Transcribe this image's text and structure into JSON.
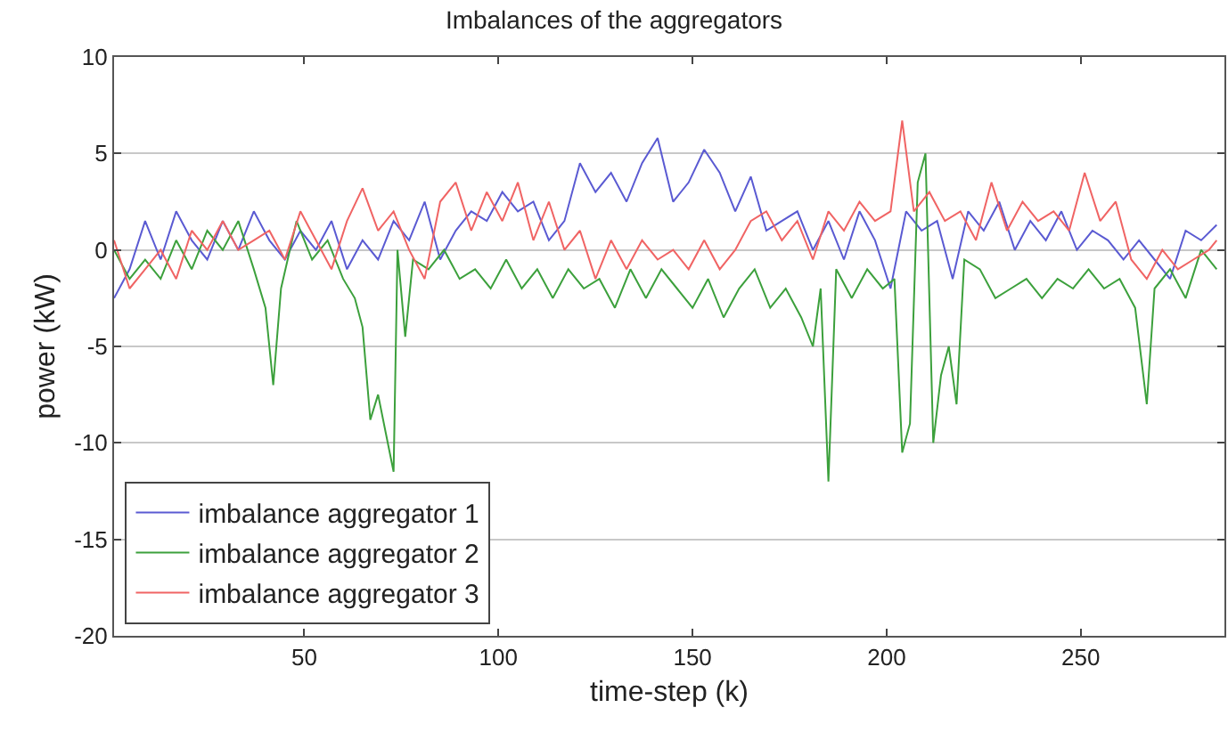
{
  "chart_data": {
    "type": "line",
    "title": "Imbalances of the aggregators",
    "xlabel": "time-step (k)",
    "ylabel": "power (kW)",
    "xlim": [
      1,
      287
    ],
    "xticks": [
      50,
      100,
      150,
      200,
      250
    ],
    "ylim": [
      -20,
      10
    ],
    "yticks": [
      -20,
      -15,
      -10,
      -5,
      0,
      5,
      10
    ],
    "grid": "y",
    "legend": "bottom left",
    "marker": "none",
    "line_style": "solid",
    "series": [
      {
        "name": "imbalance aggregator 1",
        "color": "#5a5ad2",
        "x": [
          1,
          5,
          9,
          13,
          17,
          21,
          25,
          29,
          33,
          37,
          41,
          45,
          49,
          53,
          57,
          61,
          65,
          69,
          73,
          77,
          81,
          85,
          89,
          93,
          97,
          101,
          105,
          109,
          113,
          117,
          121,
          125,
          129,
          133,
          137,
          141,
          145,
          149,
          153,
          157,
          161,
          165,
          169,
          173,
          177,
          181,
          185,
          189,
          193,
          197,
          201,
          205,
          209,
          213,
          217,
          221,
          225,
          229,
          233,
          237,
          241,
          245,
          249,
          253,
          257,
          261,
          265,
          269,
          273,
          277,
          281,
          285
        ],
        "values": [
          -2.5,
          -1,
          1.5,
          -0.5,
          2,
          0.5,
          -0.5,
          1.5,
          0,
          2,
          0.5,
          -0.5,
          1,
          0,
          1.5,
          -1,
          0.5,
          -0.5,
          1.5,
          0.5,
          2.5,
          -0.5,
          1,
          2,
          1.5,
          3,
          2,
          2.5,
          0.5,
          1.5,
          4.5,
          3,
          4,
          2.5,
          4.5,
          5.8,
          2.5,
          3.5,
          5.2,
          4,
          2,
          3.8,
          1,
          1.5,
          2,
          0,
          1.5,
          -0.5,
          2,
          0.5,
          -2,
          2,
          1,
          1.5,
          -1.5,
          2,
          1,
          2.5,
          0,
          1.5,
          0.5,
          2,
          0,
          1,
          0.5,
          -0.5,
          0.5,
          -0.5,
          -1.5,
          1,
          0.5,
          1.3
        ]
      },
      {
        "name": "imbalance aggregator 2",
        "color": "#3ca03c",
        "x": [
          1,
          5,
          9,
          13,
          17,
          21,
          25,
          29,
          33,
          37,
          40,
          42,
          44,
          48,
          52,
          56,
          60,
          63,
          65,
          67,
          69,
          71,
          73,
          74,
          76,
          78,
          82,
          86,
          90,
          94,
          98,
          102,
          106,
          110,
          114,
          118,
          122,
          126,
          130,
          134,
          138,
          142,
          146,
          150,
          154,
          158,
          162,
          166,
          170,
          174,
          178,
          181,
          183,
          185,
          187,
          191,
          195,
          199,
          202,
          204,
          206,
          208,
          210,
          212,
          214,
          216,
          218,
          220,
          224,
          228,
          232,
          236,
          240,
          244,
          248,
          252,
          256,
          260,
          264,
          267,
          269,
          273,
          277,
          281,
          285
        ],
        "values": [
          0,
          -1.5,
          -0.5,
          -1.5,
          0.5,
          -1,
          1,
          0,
          1.5,
          -1,
          -3,
          -7,
          -2,
          1.5,
          -0.5,
          0.5,
          -1.5,
          -2.5,
          -4,
          -8.8,
          -7.5,
          -9.5,
          -11.5,
          0,
          -4.5,
          -0.5,
          -1,
          0,
          -1.5,
          -1,
          -2,
          -0.5,
          -2,
          -1,
          -2.5,
          -1,
          -2,
          -1.5,
          -3,
          -1,
          -2.5,
          -1,
          -2,
          -3,
          -1.5,
          -3.5,
          -2,
          -1,
          -3,
          -2,
          -3.5,
          -5,
          -2,
          -12,
          -1,
          -2.5,
          -1,
          -2,
          -1.5,
          -10.5,
          -9,
          3.5,
          5,
          -10,
          -6.5,
          -5,
          -8,
          -0.5,
          -1,
          -2.5,
          -2,
          -1.5,
          -2.5,
          -1.5,
          -2,
          -1,
          -2,
          -1.5,
          -3,
          -8,
          -2,
          -1,
          -2.5,
          0,
          -1
        ]
      },
      {
        "name": "imbalance aggregator 3",
        "color": "#f06464",
        "x": [
          1,
          5,
          9,
          13,
          17,
          21,
          25,
          29,
          33,
          37,
          41,
          45,
          49,
          53,
          57,
          61,
          65,
          69,
          73,
          77,
          81,
          85,
          89,
          93,
          97,
          101,
          105,
          109,
          113,
          117,
          121,
          125,
          129,
          133,
          137,
          141,
          145,
          149,
          153,
          157,
          161,
          165,
          169,
          173,
          177,
          181,
          185,
          189,
          193,
          197,
          201,
          204,
          207,
          211,
          215,
          219,
          223,
          227,
          231,
          235,
          239,
          243,
          247,
          251,
          255,
          259,
          263,
          267,
          271,
          275,
          279,
          283,
          285
        ],
        "values": [
          0.5,
          -2,
          -1,
          0,
          -1.5,
          1,
          0,
          1.5,
          0,
          0.5,
          1,
          -0.5,
          2,
          0.5,
          -1,
          1.5,
          3.2,
          1,
          2,
          0,
          -1.5,
          2.5,
          3.5,
          1,
          3,
          1.5,
          3.5,
          0.5,
          2.5,
          0,
          1,
          -1.5,
          0.5,
          -1,
          0.5,
          -0.5,
          0,
          -1,
          0.5,
          -1,
          0,
          1.5,
          2,
          0.5,
          1.5,
          -0.5,
          2,
          1,
          2.5,
          1.5,
          2,
          6.7,
          2,
          3,
          1.5,
          2,
          0.5,
          3.5,
          1,
          2.5,
          1.5,
          2,
          1,
          4,
          1.5,
          2.5,
          -0.5,
          -1.5,
          0,
          -1,
          -0.5,
          0,
          0.5
        ]
      }
    ]
  }
}
